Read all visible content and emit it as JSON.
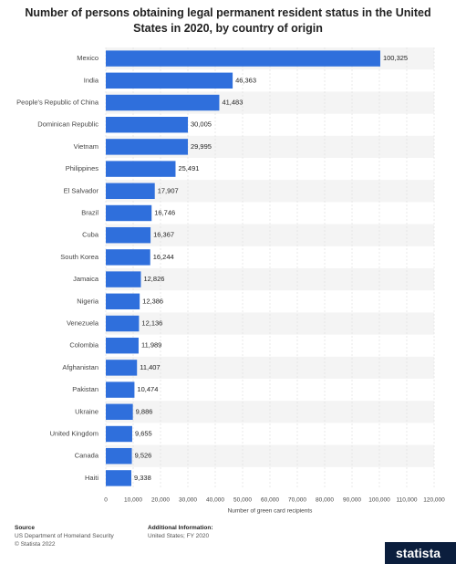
{
  "chart_data": {
    "type": "bar",
    "orientation": "horizontal",
    "title": "Number of persons obtaining legal permanent resident status in the United States in 2020, by country of origin",
    "categories": [
      "Mexico",
      "India",
      "People's Republic of China",
      "Dominican Republic",
      "Vietnam",
      "Philippines",
      "El Salvador",
      "Brazil",
      "Cuba",
      "South Korea",
      "Jamaica",
      "Nigeria",
      "Venezuela",
      "Colombia",
      "Afghanistan",
      "Pakistan",
      "Ukraine",
      "United Kingdom",
      "Canada",
      "Haiti"
    ],
    "values": [
      100325,
      46363,
      41483,
      30005,
      29995,
      25491,
      17907,
      16746,
      16367,
      16244,
      12826,
      12386,
      12136,
      11989,
      11407,
      10474,
      9886,
      9655,
      9526,
      9338
    ],
    "value_labels": [
      "100,325",
      "46,363",
      "41,483",
      "30,005",
      "29,995",
      "25,491",
      "17,907",
      "16,746",
      "16,367",
      "16,244",
      "12,826",
      "12,386",
      "12,136",
      "11,989",
      "11,407",
      "10,474",
      "9,886",
      "9,655",
      "9,526",
      "9,338"
    ],
    "color": "#2f6fdc",
    "xlabel": "Number of green card recipients",
    "xlim": [
      0,
      120000
    ],
    "xticks": [
      0,
      {
        "value": 10000,
        "label": "10,000"
      },
      {
        "value": 20000,
        "label": "20,000"
      },
      {
        "value": 30000,
        "label": "30,000"
      },
      {
        "value": 40000,
        "label": "40,000"
      },
      {
        "value": 50000,
        "label": "50,000"
      },
      {
        "value": 60000,
        "label": "60,000"
      },
      {
        "value": 70000,
        "label": "70,000"
      },
      {
        "value": 80000,
        "label": "80,000"
      },
      {
        "value": 90000,
        "label": "90,000"
      },
      {
        "value": 100000,
        "label": "100,000"
      },
      {
        "value": 110000,
        "label": "110,000"
      },
      {
        "value": 120000,
        "label": "120,000"
      }
    ],
    "grid": true
  },
  "footer": {
    "source_heading": "Source",
    "source": "US Department of Homeland Security",
    "copyright": "© Statista 2022",
    "additional_heading": "Additional Information:",
    "additional": "United States; FY 2020",
    "logo": "statista"
  }
}
